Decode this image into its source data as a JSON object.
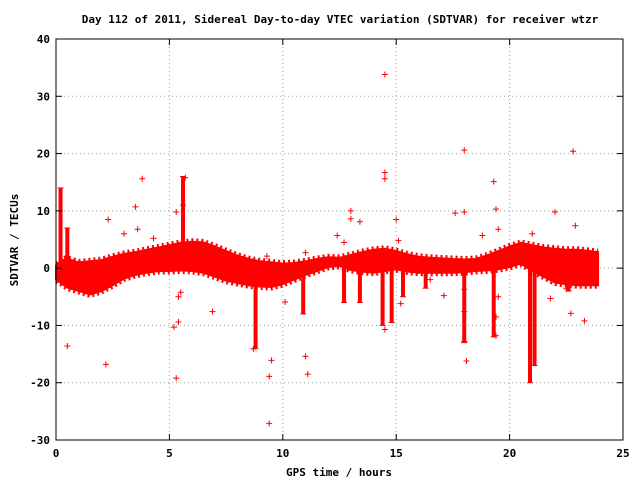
{
  "chart_data": {
    "type": "scatter",
    "title": "Day 112 of 2011, Sidereal Day-to-day VTEC variation (SDTVAR) for receiver wtzr",
    "xlabel": "GPS time / hours",
    "ylabel": "SDTVAR / TECUs",
    "xlim": [
      0,
      25
    ],
    "ylim": [
      -30,
      40
    ],
    "xticks": [
      0,
      5,
      10,
      15,
      20,
      25
    ],
    "yticks": [
      -30,
      -20,
      -10,
      0,
      10,
      20,
      30,
      40
    ],
    "grid": true,
    "marker": "plus",
    "color": "#ff0000",
    "series": [
      {
        "band_upper": [
          [
            0.0,
            0.5
          ],
          [
            0.2,
            1.2
          ],
          [
            0.4,
            1.6
          ],
          [
            0.6,
            1.5
          ],
          [
            1.0,
            1.0
          ],
          [
            1.5,
            1.2
          ],
          [
            2.0,
            1.4
          ],
          [
            2.5,
            2.0
          ],
          [
            3.0,
            2.5
          ],
          [
            3.5,
            2.8
          ],
          [
            4.0,
            3.2
          ],
          [
            4.5,
            3.6
          ],
          [
            5.0,
            4.0
          ],
          [
            5.5,
            4.4
          ],
          [
            6.0,
            4.6
          ],
          [
            6.5,
            4.5
          ],
          [
            7.0,
            3.8
          ],
          [
            7.5,
            3.0
          ],
          [
            8.0,
            2.2
          ],
          [
            8.5,
            1.6
          ],
          [
            9.0,
            1.2
          ],
          [
            9.5,
            1.0
          ],
          [
            10.0,
            0.8
          ],
          [
            10.5,
            0.9
          ],
          [
            11.0,
            1.2
          ],
          [
            11.5,
            1.6
          ],
          [
            12.0,
            1.9
          ],
          [
            12.5,
            1.8
          ],
          [
            13.0,
            2.3
          ],
          [
            13.5,
            2.8
          ],
          [
            14.0,
            3.2
          ],
          [
            14.5,
            3.4
          ],
          [
            15.0,
            3.0
          ],
          [
            15.5,
            2.4
          ],
          [
            16.0,
            2.0
          ],
          [
            16.5,
            1.8
          ],
          [
            17.0,
            1.7
          ],
          [
            17.5,
            1.6
          ],
          [
            18.0,
            1.5
          ],
          [
            18.5,
            1.6
          ],
          [
            19.0,
            2.2
          ],
          [
            19.5,
            3.0
          ],
          [
            20.0,
            3.8
          ],
          [
            20.5,
            4.4
          ],
          [
            21.0,
            4.0
          ],
          [
            21.5,
            3.6
          ],
          [
            22.0,
            3.4
          ],
          [
            22.5,
            3.2
          ],
          [
            23.0,
            3.2
          ],
          [
            23.5,
            3.0
          ],
          [
            23.9,
            2.8
          ]
        ],
        "band_lower": [
          [
            0.0,
            -2.0
          ],
          [
            0.5,
            -3.4
          ],
          [
            1.0,
            -4.0
          ],
          [
            1.5,
            -4.6
          ],
          [
            2.0,
            -4.0
          ],
          [
            2.5,
            -3.0
          ],
          [
            3.0,
            -1.8
          ],
          [
            3.5,
            -1.2
          ],
          [
            4.0,
            -0.8
          ],
          [
            4.5,
            -0.5
          ],
          [
            5.0,
            -0.5
          ],
          [
            5.5,
            -0.4
          ],
          [
            6.0,
            -0.5
          ],
          [
            6.5,
            -0.8
          ],
          [
            7.0,
            -1.5
          ],
          [
            7.5,
            -2.2
          ],
          [
            8.0,
            -2.6
          ],
          [
            8.5,
            -3.0
          ],
          [
            9.0,
            -3.2
          ],
          [
            9.5,
            -3.3
          ],
          [
            10.0,
            -2.8
          ],
          [
            10.5,
            -2.0
          ],
          [
            11.0,
            -1.2
          ],
          [
            11.5,
            -0.5
          ],
          [
            12.0,
            0.2
          ],
          [
            12.5,
            0.4
          ],
          [
            13.0,
            -0.3
          ],
          [
            13.5,
            -0.6
          ],
          [
            14.0,
            -0.8
          ],
          [
            14.5,
            -0.5
          ],
          [
            15.0,
            -0.2
          ],
          [
            15.5,
            -0.6
          ],
          [
            16.0,
            -0.8
          ],
          [
            16.5,
            -0.8
          ],
          [
            17.0,
            -0.8
          ],
          [
            17.5,
            -0.8
          ],
          [
            18.0,
            -0.7
          ],
          [
            18.5,
            -0.5
          ],
          [
            19.0,
            -0.4
          ],
          [
            19.5,
            -0.2
          ],
          [
            20.0,
            0.2
          ],
          [
            20.5,
            0.8
          ],
          [
            21.0,
            -0.5
          ],
          [
            21.5,
            -1.5
          ],
          [
            22.0,
            -2.5
          ],
          [
            22.5,
            -2.8
          ],
          [
            23.0,
            -3.0
          ],
          [
            23.5,
            -3.0
          ],
          [
            23.9,
            -3.0
          ]
        ],
        "spikes": [
          [
            0.2,
            -1.0,
            14.0
          ],
          [
            0.5,
            -3.0,
            7.0
          ],
          [
            5.6,
            2.0,
            16.0
          ],
          [
            8.8,
            -2.0,
            -14.0
          ],
          [
            10.9,
            -1.0,
            -8.0
          ],
          [
            12.7,
            0.0,
            -6.0
          ],
          [
            13.4,
            0.5,
            -6.0
          ],
          [
            14.4,
            0.0,
            -10.0
          ],
          [
            14.8,
            1.0,
            -9.5
          ],
          [
            15.3,
            0.0,
            -5.0
          ],
          [
            16.3,
            0.0,
            -3.5
          ],
          [
            18.0,
            0.0,
            -13.0
          ],
          [
            19.3,
            0.0,
            -12.0
          ],
          [
            20.9,
            2.0,
            -20.0
          ],
          [
            21.1,
            1.0,
            -17.0
          ],
          [
            22.6,
            0.0,
            -4.0
          ]
        ],
        "points": [
          [
            0.5,
            -13.6
          ],
          [
            2.2,
            -16.8
          ],
          [
            2.3,
            8.5
          ],
          [
            2.9,
            -0.8
          ],
          [
            3.0,
            6.0
          ],
          [
            3.5,
            10.7
          ],
          [
            3.6,
            6.8
          ],
          [
            3.8,
            15.6
          ],
          [
            4.3,
            5.2
          ],
          [
            5.3,
            -19.2
          ],
          [
            5.3,
            9.8
          ],
          [
            5.2,
            -10.3
          ],
          [
            5.4,
            -9.4
          ],
          [
            5.4,
            -5.0
          ],
          [
            5.5,
            -4.2
          ],
          [
            5.7,
            15.8
          ],
          [
            5.6,
            11.0
          ],
          [
            6.9,
            -7.6
          ],
          [
            8.7,
            -14.1
          ],
          [
            9.4,
            -27.1
          ],
          [
            9.5,
            -16.1
          ],
          [
            9.4,
            -18.9
          ],
          [
            9.3,
            2.1
          ],
          [
            10.1,
            -5.9
          ],
          [
            10.6,
            -1.6
          ],
          [
            11.0,
            -15.4
          ],
          [
            11.1,
            -18.5
          ],
          [
            11.0,
            2.7
          ],
          [
            12.4,
            5.7
          ],
          [
            12.7,
            4.5
          ],
          [
            13.0,
            10.0
          ],
          [
            13.0,
            8.6
          ],
          [
            13.4,
            8.1
          ],
          [
            14.5,
            33.8
          ],
          [
            14.5,
            16.7
          ],
          [
            14.5,
            15.6
          ],
          [
            14.5,
            -10.7
          ],
          [
            15.0,
            8.5
          ],
          [
            15.1,
            4.8
          ],
          [
            15.2,
            -6.2
          ],
          [
            16.5,
            -2.0
          ],
          [
            17.1,
            -4.8
          ],
          [
            17.6,
            9.6
          ],
          [
            18.0,
            20.6
          ],
          [
            18.1,
            -16.2
          ],
          [
            18.0,
            9.8
          ],
          [
            18.8,
            5.7
          ],
          [
            19.3,
            15.1
          ],
          [
            19.4,
            10.3
          ],
          [
            19.5,
            6.8
          ],
          [
            19.4,
            -11.8
          ],
          [
            19.4,
            -8.5
          ],
          [
            19.5,
            -5.0
          ],
          [
            21.0,
            6.0
          ],
          [
            21.8,
            -5.3
          ],
          [
            22.0,
            9.8
          ],
          [
            22.7,
            -7.9
          ],
          [
            22.8,
            20.4
          ],
          [
            22.9,
            7.4
          ],
          [
            22.5,
            -3.6
          ],
          [
            23.3,
            -9.2
          ]
        ],
        "errorbar": {
          "x": 18.0,
          "y": -7.6,
          "low": -12.8,
          "high": -3.7
        }
      }
    ]
  }
}
